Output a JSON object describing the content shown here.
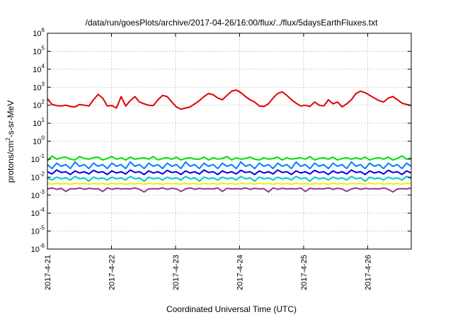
{
  "chart_data": {
    "type": "line",
    "title": "/data/run/goesPlots/archive/2017-04-26/16:00/flux/../flux/5daysEarthFluxes.txt",
    "xlabel": "Coordinated Universal Time (UTC)",
    "ylabel": "protons/cm2-s-sr-MeV",
    "ylabel_parts": {
      "pre": "protons/cm",
      "sup": "2",
      "post": "-s-sr-MeV"
    },
    "yscale": "log",
    "ylim_exp": [
      -6,
      6
    ],
    "y_ticks": [
      {
        "base": "10",
        "exp": "-6"
      },
      {
        "base": "10",
        "exp": "-5"
      },
      {
        "base": "10",
        "exp": "-4"
      },
      {
        "base": "10",
        "exp": "-3"
      },
      {
        "base": "10",
        "exp": "-2"
      },
      {
        "base": "10",
        "exp": "-1"
      },
      {
        "base": "10",
        "exp": "0"
      },
      {
        "base": "10",
        "exp": "1"
      },
      {
        "base": "10",
        "exp": "2"
      },
      {
        "base": "10",
        "exp": "3"
      },
      {
        "base": "10",
        "exp": "4"
      },
      {
        "base": "10",
        "exp": "5"
      },
      {
        "base": "10",
        "exp": "6"
      }
    ],
    "x_ticks": [
      "2017-4-21",
      "2017-4-22",
      "2017-4-23",
      "2017-4-24",
      "2017-4-25",
      "2017-4-26"
    ],
    "xlim_days": [
      0,
      5.68
    ],
    "grid": true,
    "series": [
      {
        "color": "#e00000",
        "values": [
          230,
          110,
          95,
          90,
          100,
          85,
          80,
          110,
          100,
          90,
          200,
          400,
          250,
          90,
          95,
          70,
          300,
          90,
          180,
          300,
          150,
          120,
          100,
          95,
          200,
          350,
          300,
          150,
          80,
          60,
          70,
          80,
          120,
          180,
          300,
          450,
          380,
          250,
          200,
          350,
          600,
          700,
          500,
          300,
          200,
          150,
          90,
          85,
          120,
          250,
          450,
          550,
          350,
          200,
          130,
          90,
          100,
          85,
          150,
          100,
          90,
          200,
          120,
          150,
          80,
          120,
          200,
          450,
          600,
          500,
          350,
          250,
          180,
          150,
          250,
          300,
          200,
          130,
          110,
          95
        ]
      },
      {
        "color": "#00e000",
        "values": [
          0.08,
          0.15,
          0.1,
          0.12,
          0.13,
          0.1,
          0.09,
          0.14,
          0.11,
          0.1,
          0.12,
          0.13,
          0.09,
          0.11,
          0.14,
          0.1,
          0.12,
          0.09,
          0.13,
          0.1,
          0.11,
          0.12,
          0.1,
          0.14,
          0.09,
          0.11,
          0.12,
          0.1,
          0.13,
          0.09,
          0.11,
          0.12,
          0.1,
          0.1,
          0.13,
          0.09,
          0.12,
          0.1,
          0.11,
          0.14,
          0.09,
          0.12,
          0.1,
          0.11,
          0.13,
          0.1,
          0.09,
          0.12,
          0.1,
          0.11,
          0.13,
          0.09,
          0.12,
          0.1,
          0.11,
          0.12,
          0.1,
          0.14,
          0.09,
          0.11,
          0.12,
          0.1,
          0.13,
          0.09,
          0.11,
          0.12,
          0.1,
          0.12,
          0.1,
          0.13,
          0.09,
          0.11,
          0.12,
          0.1,
          0.13,
          0.09,
          0.11,
          0.15,
          0.1,
          0.12
        ]
      },
      {
        "color": "#0080ff",
        "values": [
          0.05,
          0.03,
          0.06,
          0.04,
          0.05,
          0.03,
          0.07,
          0.04,
          0.05,
          0.03,
          0.06,
          0.04,
          0.05,
          0.03,
          0.06,
          0.04,
          0.05,
          0.03,
          0.07,
          0.04,
          0.05,
          0.03,
          0.06,
          0.04,
          0.05,
          0.03,
          0.06,
          0.04,
          0.05,
          0.03,
          0.07,
          0.04,
          0.05,
          0.03,
          0.06,
          0.04,
          0.05,
          0.03,
          0.06,
          0.04,
          0.05,
          0.03,
          0.07,
          0.04,
          0.05,
          0.03,
          0.06,
          0.04,
          0.05,
          0.03,
          0.06,
          0.04,
          0.05,
          0.03,
          0.07,
          0.04,
          0.05,
          0.03,
          0.06,
          0.04,
          0.05,
          0.03,
          0.06,
          0.04,
          0.05,
          0.03,
          0.07,
          0.04,
          0.05,
          0.03,
          0.06,
          0.04,
          0.05,
          0.03,
          0.06,
          0.04,
          0.05,
          0.03,
          0.06,
          0.04
        ]
      },
      {
        "color": "#0000e0",
        "values": [
          0.02,
          0.015,
          0.025,
          0.018,
          0.02,
          0.014,
          0.022,
          0.017,
          0.02,
          0.015,
          0.024,
          0.018,
          0.02,
          0.014,
          0.022,
          0.017,
          0.02,
          0.015,
          0.025,
          0.018,
          0.02,
          0.014,
          0.022,
          0.017,
          0.02,
          0.015,
          0.024,
          0.018,
          0.02,
          0.014,
          0.022,
          0.017,
          0.02,
          0.015,
          0.025,
          0.018,
          0.02,
          0.014,
          0.022,
          0.017,
          0.02,
          0.015,
          0.024,
          0.018,
          0.02,
          0.014,
          0.022,
          0.017,
          0.02,
          0.015,
          0.025,
          0.018,
          0.02,
          0.014,
          0.022,
          0.017,
          0.02,
          0.015,
          0.024,
          0.018,
          0.02,
          0.014,
          0.022,
          0.017,
          0.02,
          0.015,
          0.025,
          0.018,
          0.02,
          0.014,
          0.022,
          0.017,
          0.02,
          0.015,
          0.024,
          0.018,
          0.02,
          0.014,
          0.022,
          0.017
        ]
      },
      {
        "color": "#00c8c8",
        "values": [
          0.009,
          0.007,
          0.01,
          0.008,
          0.009,
          0.007,
          0.011,
          0.008,
          0.009,
          0.006,
          0.01,
          0.008,
          0.009,
          0.007,
          0.01,
          0.008,
          0.009,
          0.007,
          0.011,
          0.008,
          0.009,
          0.006,
          0.01,
          0.008,
          0.009,
          0.007,
          0.01,
          0.008,
          0.009,
          0.007,
          0.011,
          0.008,
          0.009,
          0.006,
          0.01,
          0.008,
          0.009,
          0.007,
          0.01,
          0.008,
          0.009,
          0.007,
          0.011,
          0.008,
          0.009,
          0.006,
          0.01,
          0.008,
          0.009,
          0.007,
          0.01,
          0.008,
          0.009,
          0.007,
          0.011,
          0.008,
          0.009,
          0.006,
          0.01,
          0.008,
          0.009,
          0.007,
          0.01,
          0.008,
          0.009,
          0.007,
          0.011,
          0.008,
          0.009,
          0.006,
          0.01,
          0.008,
          0.009,
          0.007,
          0.01,
          0.008,
          0.009,
          0.007,
          0.011,
          0.008
        ]
      },
      {
        "color": "#f0f000",
        "values": [
          0.0045,
          0.004,
          0.0045,
          0.0042,
          0.0045,
          0.004,
          0.0046,
          0.0042,
          0.0045,
          0.004,
          0.0045,
          0.0042,
          0.0045,
          0.004,
          0.0046,
          0.0042,
          0.0045,
          0.004,
          0.0045,
          0.0042,
          0.0045,
          0.004,
          0.0046,
          0.0042,
          0.0045,
          0.004,
          0.0045,
          0.0042,
          0.0045,
          0.004,
          0.0046,
          0.0042,
          0.0045,
          0.004,
          0.0045,
          0.0042,
          0.0045,
          0.004,
          0.0046,
          0.0042,
          0.0045,
          0.004,
          0.0045,
          0.0042,
          0.0045,
          0.004,
          0.0046,
          0.0042,
          0.0045,
          0.004,
          0.0045,
          0.0042,
          0.0045,
          0.004,
          0.0046,
          0.0042,
          0.0045,
          0.004,
          0.0045,
          0.0042,
          0.0045,
          0.004,
          0.0046,
          0.0042,
          0.0045,
          0.004,
          0.0045,
          0.0042,
          0.0045,
          0.004,
          0.0046,
          0.0042,
          0.0045,
          0.004,
          0.0045,
          0.0042,
          0.0045,
          0.004,
          0.0046,
          0.0042
        ]
      },
      {
        "color": "#8c3c8c",
        "values": [
          0.0022,
          0.0025,
          0.0021,
          0.0024,
          0.0016,
          0.0023,
          0.0022,
          0.0025,
          0.0021,
          0.0024,
          0.0022,
          0.0023,
          0.0016,
          0.0025,
          0.0021,
          0.0024,
          0.0022,
          0.0023,
          0.0022,
          0.0025,
          0.0021,
          0.0015,
          0.0022,
          0.0023,
          0.0022,
          0.0025,
          0.0021,
          0.0024,
          0.0022,
          0.0016,
          0.0022,
          0.0025,
          0.0021,
          0.0024,
          0.0022,
          0.0023,
          0.0022,
          0.0025,
          0.0016,
          0.0024,
          0.0022,
          0.0023,
          0.0022,
          0.0025,
          0.0021,
          0.0024,
          0.0022,
          0.0023,
          0.0015,
          0.0025,
          0.0021,
          0.0024,
          0.0022,
          0.0023,
          0.0022,
          0.0025,
          0.0016,
          0.0024,
          0.0022,
          0.0023,
          0.0022,
          0.0025,
          0.0021,
          0.0024,
          0.0022,
          0.0016,
          0.0022,
          0.0025,
          0.0021,
          0.0024,
          0.0022,
          0.0023,
          0.0022,
          0.0025,
          0.0021,
          0.0015,
          0.0022,
          0.0023,
          0.0022,
          0.0025
        ]
      }
    ]
  }
}
